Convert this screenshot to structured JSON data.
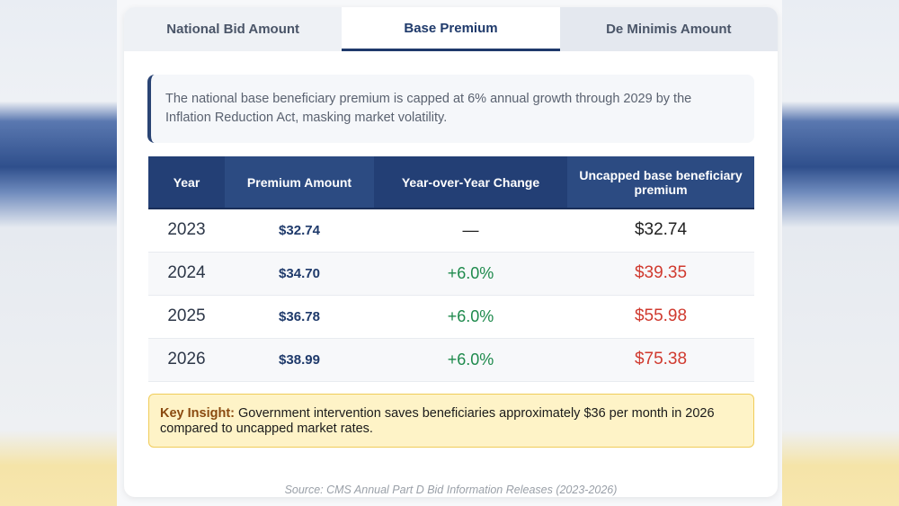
{
  "tabs": [
    {
      "label": "National Bid Amount"
    },
    {
      "label": "Base Premium",
      "active": true
    },
    {
      "label": "De Minimis Amount"
    }
  ],
  "note": "The national base beneficiary premium is capped at 6% annual growth through 2029 by the Inflation Reduction Act, masking market volatility.",
  "table": {
    "headers": [
      "Year",
      "Premium Amount",
      "Year-over-Year Change",
      "Uncapped base beneficiary premium"
    ],
    "rows": [
      {
        "year": "2023",
        "premium": "$32.74",
        "yoy": "—",
        "uncapped": "$32.74"
      },
      {
        "year": "2024",
        "premium": "$34.70",
        "yoy": "+6.0%",
        "uncapped": "$39.35"
      },
      {
        "year": "2025",
        "premium": "$36.78",
        "yoy": "+6.0%",
        "uncapped": "$55.98"
      },
      {
        "year": "2026",
        "premium": "$38.99",
        "yoy": "+6.0%",
        "uncapped": "$75.38"
      }
    ]
  },
  "insight": {
    "label": "Key Insight:",
    "text": " Government intervention saves beneficiaries approximately $36 per month in 2026 compared to uncapped market rates."
  },
  "source": "Source: CMS Annual Part D Bid Information Releases (2023-2026)",
  "colors": {
    "primary": "#1f3a6b",
    "positive": "#1e8a4c",
    "negative": "#d03a2f",
    "insight_bg": "#fef3c7"
  }
}
